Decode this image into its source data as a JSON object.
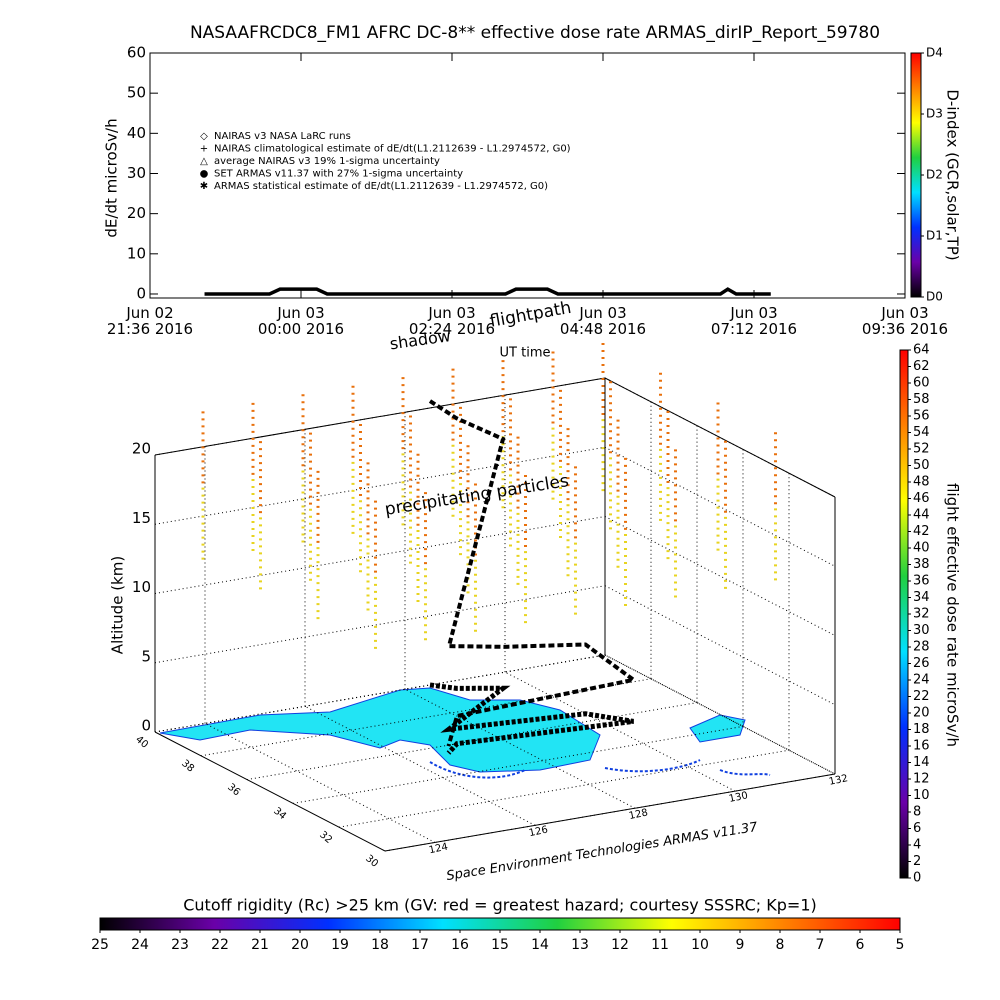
{
  "chart_data": [
    {
      "type": "line",
      "title": "NASAAFRCDC8_FM1 AFRC DC-8** effective dose rate ARMAS_dirIP_Report_59780",
      "ylabel": "dE/dt microSv/h",
      "xlabel": "UT time",
      "xlim": [
        "2016-06-02 21:36",
        "2016-06-03 09:36"
      ],
      "xticks": [
        {
          "value": "2016-06-02 21:36",
          "label": "Jun 02\n21:36 2016"
        },
        {
          "value": "2016-06-03 00:00",
          "label": "Jun 03\n00:00 2016"
        },
        {
          "value": "2016-06-03 02:24",
          "label": "Jun 03\n02:24 2016"
        },
        {
          "value": "2016-06-03 04:48",
          "label": "Jun 03\n04:48 2016"
        },
        {
          "value": "2016-06-03 07:12",
          "label": "Jun 03\n07:12 2016"
        },
        {
          "value": "2016-06-03 09:36",
          "label": "Jun 03\n09:36 2016"
        }
      ],
      "ylim": [
        -1,
        60
      ],
      "yticks": [
        0,
        10,
        20,
        30,
        40,
        50,
        60
      ],
      "x": [
        "2016-06-02 22:28",
        "2016-06-02 23:30",
        "2016-06-02 23:40",
        "2016-06-03 00:15",
        "2016-06-03 00:25",
        "2016-06-03 03:15",
        "2016-06-03 03:25",
        "2016-06-03 03:55",
        "2016-06-03 04:05",
        "2016-06-03 06:40",
        "2016-06-03 06:47",
        "2016-06-03 06:55",
        "2016-06-03 07:28"
      ],
      "series": [
        {
          "name": "NAIRAS v3 NASA LaRC runs",
          "marker": "diamond",
          "color": "#000000",
          "values": [
            0,
            0,
            1.2,
            1.2,
            0,
            0,
            1.2,
            1.2,
            0,
            0,
            1.2,
            0,
            0
          ]
        },
        {
          "name": "NAIRAS climatological estimate of dE/dt(L1.2112639 - L1.2974572, G0)",
          "marker": "plus",
          "color": "#000000"
        },
        {
          "name": "average NAIRAS v3 19% 1-sigma uncertainty",
          "marker": "triangle",
          "color": "#000000"
        },
        {
          "name": "SET ARMAS v11.37 with 27% 1-sigma uncertainty",
          "marker": "dot",
          "color": "#1030d0"
        },
        {
          "name": "ARMAS statistical estimate of dE/dt(L1.2112639 - L1.2974572, G0)",
          "marker": "star",
          "color": "#000000"
        }
      ]
    },
    {
      "type": "colorbar",
      "orientation": "vertical",
      "label": "D-index (GCR,solar,TP)",
      "lim": [
        0,
        4
      ],
      "ticks": [
        {
          "value": 0,
          "label": "D0"
        },
        {
          "value": 1,
          "label": "D1"
        },
        {
          "value": 2,
          "label": "D2"
        },
        {
          "value": 3,
          "label": "D3"
        },
        {
          "value": 4,
          "label": "D4"
        }
      ],
      "colors": [
        "#000000",
        "#6a00a8",
        "#0030ff",
        "#00e0ff",
        "#20d040",
        "#ffff00",
        "#ff8000",
        "#ff0000"
      ]
    },
    {
      "type": "scatter3d",
      "zlabel": "Altitude (km)",
      "xlim": [
        123,
        132
      ],
      "xticks": [
        124,
        126,
        128,
        130,
        132
      ],
      "ylim": [
        30,
        40
      ],
      "yticks": [
        40,
        38,
        36,
        34,
        32,
        30
      ],
      "zlim": [
        0,
        20
      ],
      "zticks": [
        0,
        5,
        10,
        15,
        20
      ],
      "annotations": [
        "shadow",
        "flightpath",
        "precipitating particles"
      ],
      "credit": "Space Environment Technologies ARMAS v11.37",
      "flightpath": {
        "lon": [
          128.5,
          128.8,
          129.5,
          127.5,
          128.5,
          130,
          130.5,
          127.2,
          126.8
        ],
        "lat": [
          40,
          39.5,
          39,
          37,
          36.8,
          36.5,
          35.5,
          36,
          35.5
        ],
        "alt": [
          20.5,
          19.5,
          18,
          6,
          5.5,
          5,
          3,
          2,
          0.5
        ]
      },
      "particle_lon": [
        123.5,
        124.5,
        125.5,
        126.5,
        127.5,
        128.5,
        129.5,
        130.5,
        131.5
      ],
      "particle_lat": [
        39,
        36.5,
        34,
        31.5
      ],
      "particle_alt": [
        13,
        24
      ],
      "particle_colors": [
        "#e8700c",
        "#e8d420"
      ]
    },
    {
      "type": "colorbar",
      "orientation": "vertical",
      "label": "flight effective dose rate microSv/h",
      "lim": [
        0,
        64
      ],
      "ticks": [
        0,
        2,
        4,
        6,
        8,
        10,
        12,
        14,
        16,
        18,
        20,
        22,
        24,
        26,
        28,
        30,
        32,
        34,
        36,
        38,
        40,
        42,
        44,
        46,
        48,
        50,
        52,
        54,
        56,
        58,
        60,
        62,
        64
      ],
      "colors": [
        "#000000",
        "#6a00a8",
        "#0030ff",
        "#00e0ff",
        "#20d040",
        "#ffff00",
        "#ff8000",
        "#ff0000"
      ]
    },
    {
      "type": "colorbar",
      "orientation": "horizontal",
      "label": "Cutoff rigidity (Rc) >25 km (GV: red = greatest hazard; courtesy SSSRC; Kp=1)",
      "lim": [
        25,
        5
      ],
      "ticks": [
        25,
        24,
        23,
        22,
        21,
        20,
        19,
        18,
        17,
        16,
        15,
        14,
        13,
        12,
        11,
        10,
        9,
        8,
        7,
        6,
        5
      ],
      "colors": [
        "#000000",
        "#6a00a8",
        "#0030ff",
        "#00e0ff",
        "#20d040",
        "#ffff00",
        "#ff8000",
        "#ff0000"
      ]
    }
  ]
}
